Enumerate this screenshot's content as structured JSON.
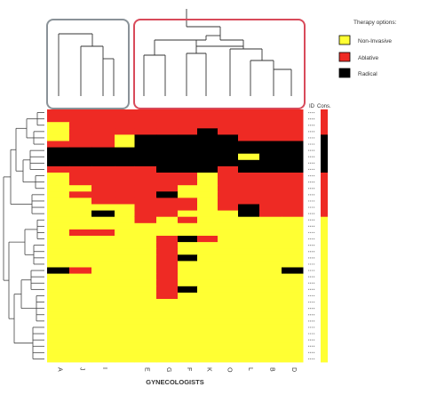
{
  "chart_data": {
    "type": "heatmap",
    "xlabel": "GYNECOLOGISTS",
    "columns": [
      "A",
      "J",
      "I",
      "E",
      "G",
      "F",
      "K",
      "O",
      "L",
      "B",
      "D"
    ],
    "column_headers_right": [
      "ID",
      "Cons."
    ],
    "legend": {
      "title": "Therapy options:",
      "position": "top-right",
      "items": [
        {
          "label": "Non-Invasive",
          "color": "#ffff33"
        },
        {
          "label": "Ablative",
          "color": "#ee2a24"
        },
        {
          "label": "Radical",
          "color": "#000000"
        }
      ]
    },
    "value_codes": {
      "N": "Non-Invasive",
      "A": "Ablative",
      "R": "Radical"
    },
    "rows": [
      {
        "values": "AAAAAAAAAAA",
        "consensus": "A"
      },
      {
        "values": "AAAAAAAAAAA",
        "consensus": "A"
      },
      {
        "values": "NAAAAAAAAAA",
        "consensus": "A"
      },
      {
        "values": "NAAAAARAAAA",
        "consensus": "A"
      },
      {
        "values": "NAARRRRRAAA",
        "consensus": "R"
      },
      {
        "values": "AAARRRRRRRR",
        "consensus": "R"
      },
      {
        "values": "RRRRRRRRRRR",
        "consensus": "R"
      },
      {
        "values": "RRRRRRRRNRR",
        "consensus": "R"
      },
      {
        "values": "RRRRRRRRRRR",
        "consensus": "R"
      },
      {
        "values": "AAAARRRARRR",
        "consensus": "R"
      },
      {
        "values": "NAAAAANAAAA",
        "consensus": "A"
      },
      {
        "values": "NAAAAANAAAA",
        "consensus": "A"
      },
      {
        "values": "NNAAANNAAAA",
        "consensus": "A"
      },
      {
        "values": "NAAARNNAAAA",
        "consensus": "A"
      },
      {
        "values": "NNAAAANAAAA",
        "consensus": "A"
      },
      {
        "values": "NNNAAANARAA",
        "consensus": "A"
      },
      {
        "values": "NNRAANNNRAA",
        "consensus": "A"
      },
      {
        "values": "NNNANANNNNN",
        "consensus": "N"
      },
      {
        "values": "NNNNNNNNNNN",
        "consensus": "N"
      },
      {
        "values": "NAANNNNNNNN",
        "consensus": "N"
      },
      {
        "values": "NNNNARANNNN",
        "consensus": "N"
      },
      {
        "values": "NNNNANNNNNN",
        "consensus": "N"
      },
      {
        "values": "NNNNANNNNNN",
        "consensus": "N"
      },
      {
        "values": "NNNNARNNNNN",
        "consensus": "N"
      },
      {
        "values": "NNNNANNNNNN",
        "consensus": "N"
      },
      {
        "values": "RANNANNNNNR",
        "consensus": "N"
      },
      {
        "values": "NNNNANNNNNN",
        "consensus": "N"
      },
      {
        "values": "NNNNANNNNNN",
        "consensus": "N"
      },
      {
        "values": "NNNNARNNNNN",
        "consensus": "N"
      },
      {
        "values": "NNNNANNNNNN",
        "consensus": "N"
      },
      {
        "values": "NNNNNNNNNNN",
        "consensus": "N"
      },
      {
        "values": "NNNNNNNNNNN",
        "consensus": "N"
      },
      {
        "values": "NNNNNNNNNNN",
        "consensus": "N"
      },
      {
        "values": "NNNNNNNNNNN",
        "consensus": "N"
      },
      {
        "values": "NNNNNNNNNNN",
        "consensus": "N"
      },
      {
        "values": "NNNNNNNNNNN",
        "consensus": "N"
      },
      {
        "values": "NNNNNNNNNNN",
        "consensus": "N"
      },
      {
        "values": "NNNNNNNNNNN",
        "consensus": "N"
      },
      {
        "values": "NNNNNNNNNNN",
        "consensus": "N"
      },
      {
        "values": "NNNNNNNNNNN",
        "consensus": "N"
      }
    ],
    "cluster_groups": [
      {
        "name": "left",
        "columns": [
          "A",
          "J",
          "I"
        ],
        "box_color": "#8a9298"
      },
      {
        "name": "right",
        "columns": [
          "E",
          "G",
          "F",
          "K",
          "O",
          "L",
          "B",
          "D"
        ],
        "box_color": "#d84a5a"
      }
    ]
  }
}
